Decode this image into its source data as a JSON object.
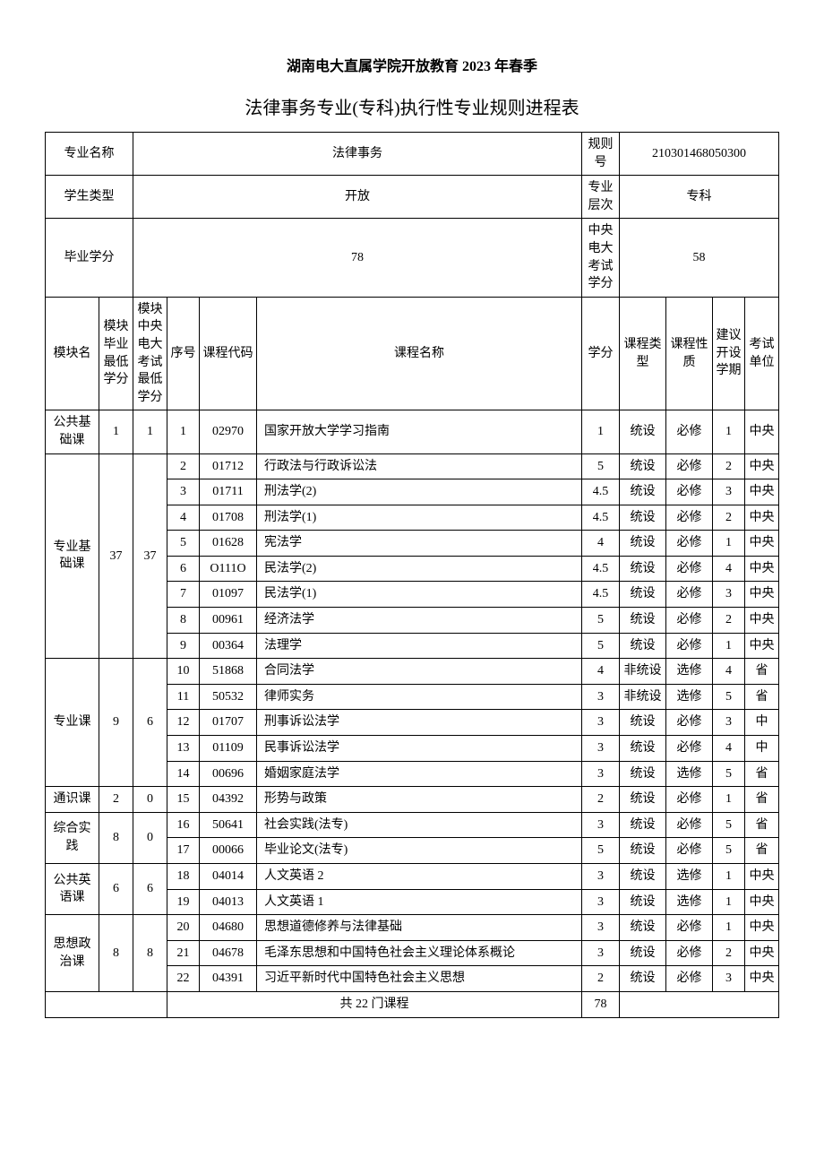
{
  "header": {
    "title1": "湖南电大直属学院开放教育 2023 年春季",
    "title2": "法律事务专业(专科)执行性专业规则进程表"
  },
  "meta": {
    "labels": {
      "major_name": "专业名称",
      "rule_no": "规则号",
      "student_type": "学生类型",
      "major_level": "专业层次",
      "grad_credits": "毕业学分",
      "central_exam_credits": "中央电大考试学分"
    },
    "values": {
      "major_name": "法律事务",
      "rule_no": "210301468050300",
      "student_type": "开放",
      "major_level": "专科",
      "grad_credits": "78",
      "central_exam_credits": "58"
    }
  },
  "columns": {
    "module_name": "模块名",
    "module_min_credit": "模块毕业最低学分",
    "module_central_min": "模块中央电大考试最低学分",
    "seq": "序号",
    "course_code": "课程代码",
    "course_name": "课程名称",
    "credit": "学分",
    "course_type": "课程类型",
    "course_nature": "课程性质",
    "suggest_sem": "建议开设学期",
    "exam_unit": "考试单位"
  },
  "modules": [
    {
      "name": "公共基础课",
      "min_credit": "1",
      "central_min": "1",
      "courses": [
        {
          "seq": "1",
          "code": "02970",
          "name": "国家开放大学学习指南",
          "credit": "1",
          "ctype": "统设",
          "cnature": "必修",
          "sem": "1",
          "unit": "中央"
        }
      ]
    },
    {
      "name": "专业基础课",
      "min_credit": "37",
      "central_min": "37",
      "courses": [
        {
          "seq": "2",
          "code": "01712",
          "name": "行政法与行政诉讼法",
          "credit": "5",
          "ctype": "统设",
          "cnature": "必修",
          "sem": "2",
          "unit": "中央"
        },
        {
          "seq": "3",
          "code": "01711",
          "name": "刑法学(2)",
          "credit": "4.5",
          "ctype": "统设",
          "cnature": "必修",
          "sem": "3",
          "unit": "中央"
        },
        {
          "seq": "4",
          "code": "01708",
          "name": "刑法学(1)",
          "credit": "4.5",
          "ctype": "统设",
          "cnature": "必修",
          "sem": "2",
          "unit": "中央"
        },
        {
          "seq": "5",
          "code": "01628",
          "name": "宪法学",
          "credit": "4",
          "ctype": "统设",
          "cnature": "必修",
          "sem": "1",
          "unit": "中央"
        },
        {
          "seq": "6",
          "code": "O111O",
          "name": "民法学(2)",
          "credit": "4.5",
          "ctype": "统设",
          "cnature": "必修",
          "sem": "4",
          "unit": "中央"
        },
        {
          "seq": "7",
          "code": "01097",
          "name": "民法学(1)",
          "credit": "4.5",
          "ctype": "统设",
          "cnature": "必修",
          "sem": "3",
          "unit": "中央"
        },
        {
          "seq": "8",
          "code": "00961",
          "name": "经济法学",
          "credit": "5",
          "ctype": "统设",
          "cnature": "必修",
          "sem": "2",
          "unit": "中央"
        },
        {
          "seq": "9",
          "code": "00364",
          "name": "法理学",
          "credit": "5",
          "ctype": "统设",
          "cnature": "必修",
          "sem": "1",
          "unit": "中央"
        }
      ]
    },
    {
      "name": "专业课",
      "min_credit": "9",
      "central_min": "6",
      "courses": [
        {
          "seq": "10",
          "code": "51868",
          "name": "合同法学",
          "credit": "4",
          "ctype": "非统设",
          "cnature": "选修",
          "sem": "4",
          "unit": "省"
        },
        {
          "seq": "11",
          "code": "50532",
          "name": "律师实务",
          "credit": "3",
          "ctype": "非统设",
          "cnature": "选修",
          "sem": "5",
          "unit": "省"
        },
        {
          "seq": "12",
          "code": "01707",
          "name": "刑事诉讼法学",
          "credit": "3",
          "ctype": "统设",
          "cnature": "必修",
          "sem": "3",
          "unit": "中"
        },
        {
          "seq": "13",
          "code": "01109",
          "name": "民事诉讼法学",
          "credit": "3",
          "ctype": "统设",
          "cnature": "必修",
          "sem": "4",
          "unit": "中"
        },
        {
          "seq": "14",
          "code": "00696",
          "name": "婚姻家庭法学",
          "credit": "3",
          "ctype": "统设",
          "cnature": "选修",
          "sem": "5",
          "unit": "省"
        }
      ]
    },
    {
      "name": "通识课",
      "min_credit": "2",
      "central_min": "0",
      "courses": [
        {
          "seq": "15",
          "code": "04392",
          "name": "形势与政策",
          "credit": "2",
          "ctype": "统设",
          "cnature": "必修",
          "sem": "1",
          "unit": "省"
        }
      ]
    },
    {
      "name": "综合实践",
      "min_credit": "8",
      "central_min": "0",
      "courses": [
        {
          "seq": "16",
          "code": "50641",
          "name": "社会实践(法专)",
          "credit": "3",
          "ctype": "统设",
          "cnature": "必修",
          "sem": "5",
          "unit": "省"
        },
        {
          "seq": "17",
          "code": "00066",
          "name": "毕业论文(法专)",
          "credit": "5",
          "ctype": "统设",
          "cnature": "必修",
          "sem": "5",
          "unit": "省"
        }
      ]
    },
    {
      "name": "公共英语课",
      "min_credit": "6",
      "central_min": "6",
      "courses": [
        {
          "seq": "18",
          "code": "04014",
          "name": "人文英语 2",
          "credit": "3",
          "ctype": "统设",
          "cnature": "选修",
          "sem": "1",
          "unit": "中央"
        },
        {
          "seq": "19",
          "code": "04013",
          "name": "人文英语 1",
          "credit": "3",
          "ctype": "统设",
          "cnature": "选修",
          "sem": "1",
          "unit": "中央"
        }
      ]
    },
    {
      "name": "思想政治课",
      "min_credit": "8",
      "central_min": "8",
      "courses": [
        {
          "seq": "20",
          "code": "04680",
          "name": "思想道德修养与法律基础",
          "credit": "3",
          "ctype": "统设",
          "cnature": "必修",
          "sem": "1",
          "unit": "中央"
        },
        {
          "seq": "21",
          "code": "04678",
          "name": "毛泽东思想和中国特色社会主义理论体系概论",
          "credit": "3",
          "ctype": "统设",
          "cnature": "必修",
          "sem": "2",
          "unit": "中央"
        },
        {
          "seq": "22",
          "code": "04391",
          "name": "习近平新时代中国特色社会主义思想",
          "credit": "2",
          "ctype": "统设",
          "cnature": "必修",
          "sem": "3",
          "unit": "中央"
        }
      ]
    }
  ],
  "footer": {
    "total_label": "共 22 门课程",
    "total_credits": "78"
  }
}
